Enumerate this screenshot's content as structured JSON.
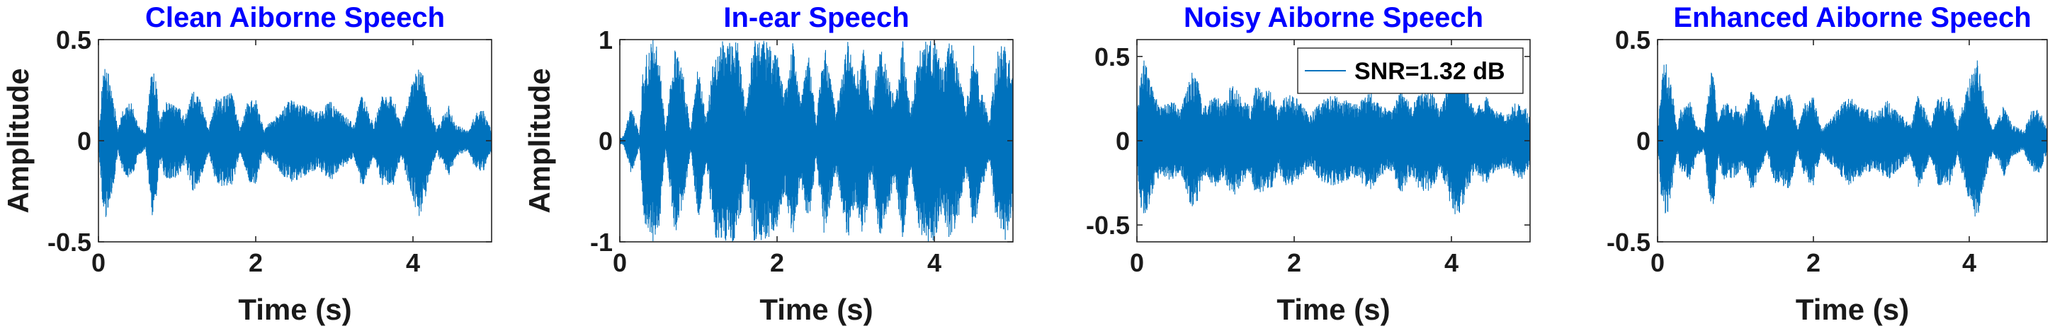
{
  "colors": {
    "signal": "#0072BD",
    "title": "#0000FF",
    "axis": "#262626",
    "text": "#1a1a1a"
  },
  "chart_data": [
    {
      "type": "line",
      "title": "Clean Aiborne Speech",
      "xlabel": "Time (s)",
      "ylabel": "Amplitude",
      "xlim": [
        0,
        5
      ],
      "ylim": [
        -0.5,
        0.5
      ],
      "xticks": [
        "0",
        "2",
        "4"
      ],
      "yticks": [
        "-0.5",
        "0",
        "0.5"
      ],
      "series": [
        {
          "noise_floor": 0.025,
          "envelope": [
            [
              0.0,
              0.03
            ],
            [
              0.05,
              0.3
            ],
            [
              0.1,
              0.4
            ],
            [
              0.2,
              0.2
            ],
            [
              0.25,
              0.05
            ],
            [
              0.3,
              0.15
            ],
            [
              0.42,
              0.2
            ],
            [
              0.5,
              0.08
            ],
            [
              0.6,
              0.04
            ],
            [
              0.68,
              0.38
            ],
            [
              0.73,
              0.32
            ],
            [
              0.78,
              0.1
            ],
            [
              0.85,
              0.2
            ],
            [
              1.0,
              0.18
            ],
            [
              1.1,
              0.12
            ],
            [
              1.2,
              0.25
            ],
            [
              1.3,
              0.2
            ],
            [
              1.4,
              0.06
            ],
            [
              1.5,
              0.22
            ],
            [
              1.7,
              0.24
            ],
            [
              1.8,
              0.06
            ],
            [
              1.9,
              0.2
            ],
            [
              2.0,
              0.22
            ],
            [
              2.1,
              0.06
            ],
            [
              2.3,
              0.15
            ],
            [
              2.45,
              0.22
            ],
            [
              2.6,
              0.18
            ],
            [
              2.8,
              0.14
            ],
            [
              2.95,
              0.2
            ],
            [
              3.1,
              0.14
            ],
            [
              3.25,
              0.08
            ],
            [
              3.35,
              0.24
            ],
            [
              3.5,
              0.08
            ],
            [
              3.6,
              0.22
            ],
            [
              3.75,
              0.22
            ],
            [
              3.85,
              0.08
            ],
            [
              4.0,
              0.3
            ],
            [
              4.1,
              0.4
            ],
            [
              4.2,
              0.2
            ],
            [
              4.3,
              0.06
            ],
            [
              4.45,
              0.18
            ],
            [
              4.55,
              0.08
            ],
            [
              4.7,
              0.05
            ],
            [
              4.8,
              0.15
            ],
            [
              4.9,
              0.15
            ],
            [
              5.0,
              0.05
            ]
          ]
        }
      ]
    },
    {
      "type": "line",
      "title": "In-ear Speech",
      "xlabel": "Time (s)",
      "ylabel": "Amplitude",
      "xlim": [
        0,
        5
      ],
      "ylim": [
        -1,
        1
      ],
      "xticks": [
        "0",
        "2",
        "4"
      ],
      "yticks": [
        "-1",
        "0",
        "1"
      ],
      "series": [
        {
          "noise_floor": 0.03,
          "envelope": [
            [
              0.0,
              0.03
            ],
            [
              0.05,
              0.05
            ],
            [
              0.15,
              0.35
            ],
            [
              0.25,
              0.06
            ],
            [
              0.3,
              0.8
            ],
            [
              0.42,
              1.0
            ],
            [
              0.5,
              0.9
            ],
            [
              0.58,
              0.1
            ],
            [
              0.7,
              0.95
            ],
            [
              0.8,
              0.7
            ],
            [
              0.9,
              0.1
            ],
            [
              1.0,
              0.8
            ],
            [
              1.1,
              0.2
            ],
            [
              1.2,
              0.95
            ],
            [
              1.35,
              1.0
            ],
            [
              1.5,
              1.0
            ],
            [
              1.6,
              0.3
            ],
            [
              1.7,
              1.0
            ],
            [
              1.85,
              1.0
            ],
            [
              2.0,
              0.85
            ],
            [
              2.1,
              0.5
            ],
            [
              2.2,
              1.0
            ],
            [
              2.3,
              0.4
            ],
            [
              2.4,
              0.85
            ],
            [
              2.5,
              0.2
            ],
            [
              2.6,
              1.0
            ],
            [
              2.75,
              0.3
            ],
            [
              2.9,
              1.0
            ],
            [
              3.0,
              0.6
            ],
            [
              3.1,
              1.0
            ],
            [
              3.2,
              0.3
            ],
            [
              3.3,
              1.0
            ],
            [
              3.4,
              0.7
            ],
            [
              3.5,
              0.4
            ],
            [
              3.6,
              1.0
            ],
            [
              3.7,
              0.3
            ],
            [
              3.8,
              0.9
            ],
            [
              3.9,
              1.0
            ],
            [
              4.0,
              1.0
            ],
            [
              4.1,
              0.7
            ],
            [
              4.2,
              1.0
            ],
            [
              4.3,
              0.8
            ],
            [
              4.4,
              0.3
            ],
            [
              4.5,
              0.95
            ],
            [
              4.6,
              0.5
            ],
            [
              4.7,
              0.2
            ],
            [
              4.8,
              0.9
            ],
            [
              4.9,
              1.0
            ],
            [
              5.0,
              0.7
            ]
          ]
        }
      ]
    },
    {
      "type": "line",
      "title": "Noisy Aiborne Speech",
      "xlabel": "Time (s)",
      "ylabel": "",
      "xlim": [
        0,
        5
      ],
      "ylim": [
        -0.6,
        0.6
      ],
      "xticks": [
        "0",
        "2",
        "4"
      ],
      "yticks": [
        "-0.5",
        "0",
        "0.5"
      ],
      "legend": {
        "label": "SNR=1.32 dB",
        "loc": "top-right"
      },
      "series": [
        {
          "name": "SNR=1.32 dB",
          "noise_floor": 0.14,
          "envelope": [
            [
              0.0,
              0.14
            ],
            [
              0.05,
              0.4
            ],
            [
              0.1,
              0.5
            ],
            [
              0.2,
              0.3
            ],
            [
              0.3,
              0.2
            ],
            [
              0.45,
              0.25
            ],
            [
              0.55,
              0.18
            ],
            [
              0.7,
              0.42
            ],
            [
              0.78,
              0.35
            ],
            [
              0.85,
              0.2
            ],
            [
              1.0,
              0.28
            ],
            [
              1.1,
              0.22
            ],
            [
              1.2,
              0.35
            ],
            [
              1.35,
              0.25
            ],
            [
              1.45,
              0.2
            ],
            [
              1.5,
              0.32
            ],
            [
              1.7,
              0.3
            ],
            [
              1.8,
              0.18
            ],
            [
              1.9,
              0.28
            ],
            [
              2.05,
              0.25
            ],
            [
              2.2,
              0.15
            ],
            [
              2.3,
              0.22
            ],
            [
              2.45,
              0.28
            ],
            [
              2.6,
              0.25
            ],
            [
              2.8,
              0.22
            ],
            [
              2.95,
              0.3
            ],
            [
              3.1,
              0.22
            ],
            [
              3.25,
              0.18
            ],
            [
              3.35,
              0.32
            ],
            [
              3.5,
              0.2
            ],
            [
              3.6,
              0.3
            ],
            [
              3.75,
              0.3
            ],
            [
              3.85,
              0.18
            ],
            [
              4.0,
              0.4
            ],
            [
              4.1,
              0.48
            ],
            [
              4.2,
              0.3
            ],
            [
              4.3,
              0.18
            ],
            [
              4.45,
              0.28
            ],
            [
              4.55,
              0.18
            ],
            [
              4.7,
              0.16
            ],
            [
              4.8,
              0.22
            ],
            [
              4.9,
              0.24
            ],
            [
              5.0,
              0.14
            ]
          ]
        }
      ]
    },
    {
      "type": "line",
      "title": "Enhanced Aiborne Speech",
      "xlabel": "Time (s)",
      "ylabel": "",
      "xlim": [
        0,
        5
      ],
      "ylim": [
        -0.5,
        0.5
      ],
      "xticks": [
        "0",
        "2",
        "4"
      ],
      "yticks": [
        "-0.5",
        "0",
        "0.5"
      ],
      "series": [
        {
          "noise_floor": 0.03,
          "envelope": [
            [
              0.0,
              0.03
            ],
            [
              0.05,
              0.3
            ],
            [
              0.1,
              0.42
            ],
            [
              0.2,
              0.22
            ],
            [
              0.25,
              0.06
            ],
            [
              0.3,
              0.16
            ],
            [
              0.42,
              0.2
            ],
            [
              0.5,
              0.08
            ],
            [
              0.6,
              0.05
            ],
            [
              0.68,
              0.36
            ],
            [
              0.73,
              0.3
            ],
            [
              0.78,
              0.1
            ],
            [
              0.85,
              0.2
            ],
            [
              1.0,
              0.18
            ],
            [
              1.1,
              0.12
            ],
            [
              1.2,
              0.25
            ],
            [
              1.3,
              0.2
            ],
            [
              1.4,
              0.06
            ],
            [
              1.5,
              0.22
            ],
            [
              1.7,
              0.24
            ],
            [
              1.8,
              0.06
            ],
            [
              1.9,
              0.2
            ],
            [
              2.0,
              0.22
            ],
            [
              2.1,
              0.06
            ],
            [
              2.3,
              0.15
            ],
            [
              2.45,
              0.22
            ],
            [
              2.6,
              0.18
            ],
            [
              2.8,
              0.14
            ],
            [
              2.95,
              0.2
            ],
            [
              3.1,
              0.14
            ],
            [
              3.25,
              0.08
            ],
            [
              3.35,
              0.24
            ],
            [
              3.5,
              0.08
            ],
            [
              3.6,
              0.22
            ],
            [
              3.75,
              0.22
            ],
            [
              3.85,
              0.08
            ],
            [
              4.0,
              0.3
            ],
            [
              4.1,
              0.42
            ],
            [
              4.2,
              0.2
            ],
            [
              4.3,
              0.06
            ],
            [
              4.45,
              0.18
            ],
            [
              4.55,
              0.08
            ],
            [
              4.7,
              0.05
            ],
            [
              4.8,
              0.15
            ],
            [
              4.9,
              0.16
            ],
            [
              5.0,
              0.06
            ]
          ]
        }
      ]
    }
  ]
}
